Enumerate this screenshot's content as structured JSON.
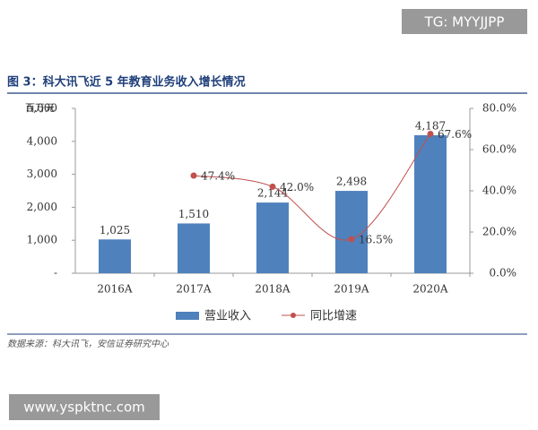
{
  "watermark_top": "TG: MYYJJPP",
  "watermark_bottom": "www.yspktnc.com",
  "source": "数据来源：科大讯飞，安信证券研究中心",
  "chart_data": {
    "type": "bar",
    "title": "图 3：科大讯飞近 5 年教育业务收入增长情况",
    "y_label": "百万元",
    "categories": [
      "2016A",
      "2017A",
      "2018A",
      "2019A",
      "2020A"
    ],
    "series": [
      {
        "name": "营业收入",
        "type": "bar",
        "color": "#4f81bd",
        "values": [
          1025,
          1510,
          2144,
          2498,
          4187
        ],
        "value_labels": [
          "1,025",
          "1,510",
          "2,144",
          "2,498",
          "4,187"
        ]
      },
      {
        "name": "同比增速",
        "type": "line",
        "axis": "y2",
        "color": "#c0504d",
        "values": [
          null,
          47.4,
          42.0,
          16.5,
          67.6
        ],
        "value_labels": [
          null,
          "47.4%",
          "42.0%",
          "16.5%",
          "67.6%"
        ]
      }
    ],
    "ylim": [
      0,
      5000
    ],
    "yticks": [
      {
        "value": 0,
        "label": "-"
      },
      {
        "value": 1000,
        "label": "1,000"
      },
      {
        "value": 2000,
        "label": "2,000"
      },
      {
        "value": 3000,
        "label": "3,000"
      },
      {
        "value": 4000,
        "label": "4,000"
      },
      {
        "value": 5000,
        "label": "5,000"
      }
    ],
    "y2lim": [
      0,
      80
    ],
    "y2ticks": [
      {
        "value": 0,
        "label": "0.0%"
      },
      {
        "value": 20,
        "label": "20.0%"
      },
      {
        "value": 40,
        "label": "40.0%"
      },
      {
        "value": 60,
        "label": "60.0%"
      },
      {
        "value": 80,
        "label": "80.0%"
      }
    ],
    "grid": false,
    "legend": "bottom"
  }
}
